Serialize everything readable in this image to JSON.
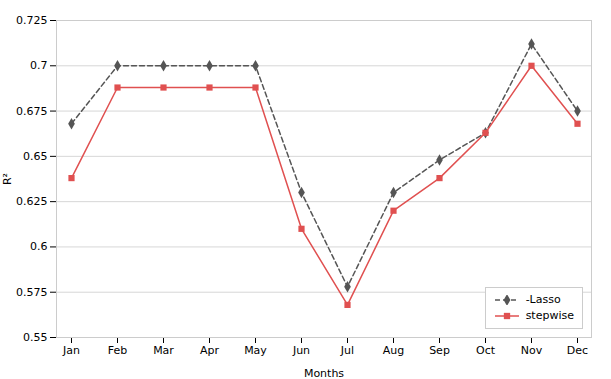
{
  "chart_data": {
    "type": "line",
    "categories": [
      "Jan",
      "Feb",
      "Mar",
      "Apr",
      "May",
      "Jun",
      "Jul",
      "Aug",
      "Sep",
      "Oct",
      "Nov",
      "Dec"
    ],
    "series": [
      {
        "name": "-Lasso",
        "color": "#555555",
        "marker": "diamond",
        "line_style": "dashed",
        "values": [
          0.668,
          0.7,
          0.7,
          0.7,
          0.7,
          0.63,
          0.578,
          0.63,
          0.648,
          0.663,
          0.712,
          0.675
        ]
      },
      {
        "name": "stepwise",
        "color": "#e05050",
        "marker": "square",
        "line_style": "solid",
        "values": [
          0.638,
          0.688,
          0.688,
          0.688,
          0.688,
          0.61,
          0.568,
          0.62,
          0.638,
          0.663,
          0.7,
          0.668
        ]
      }
    ],
    "xlabel": "Months",
    "ylabel": "R²",
    "ylim": [
      0.55,
      0.725
    ],
    "yticks": [
      0.55,
      0.575,
      0.6,
      0.625,
      0.65,
      0.675,
      0.7,
      0.725
    ],
    "grid": true,
    "legend": "lower right"
  }
}
